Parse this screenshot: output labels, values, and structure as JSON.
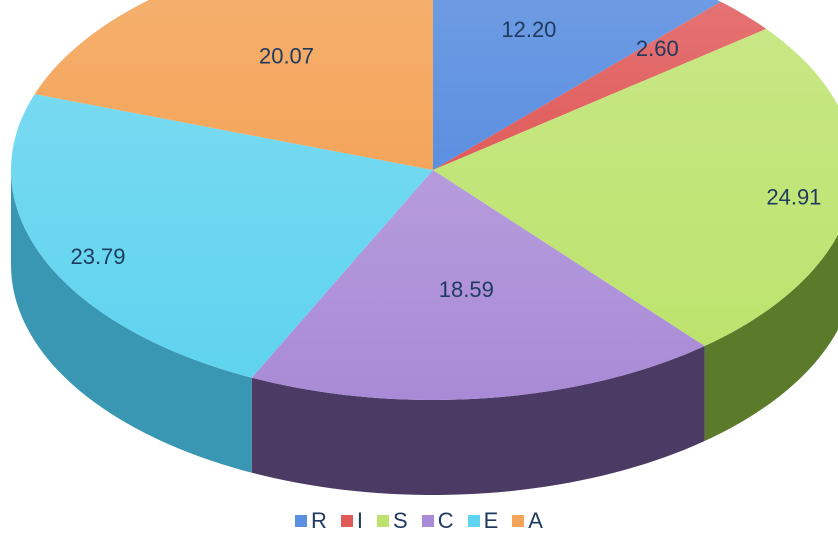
{
  "chart_data": {
    "type": "pie",
    "style": "3d",
    "categories": [
      "R",
      "I",
      "S",
      "C",
      "E",
      "A"
    ],
    "values": [
      12.2,
      2.6,
      24.91,
      18.59,
      23.79,
      20.07
    ],
    "value_labels": [
      "12.20",
      "2.60",
      "24.91",
      "18.59",
      "23.79",
      "20.07"
    ],
    "colors": [
      "#5b8fe0",
      "#e05a5a",
      "#bde36e",
      "#a98ad6",
      "#5fd3ef",
      "#f4a55a"
    ],
    "side_colors": [
      "#3a63a8",
      "#a23a3a",
      "#5b7a2a",
      "#4a3a64",
      "#3a97b3",
      "#b06a2a"
    ],
    "legend_position": "bottom",
    "title": "",
    "start_angle_deg": 0,
    "direction": "clockwise"
  }
}
